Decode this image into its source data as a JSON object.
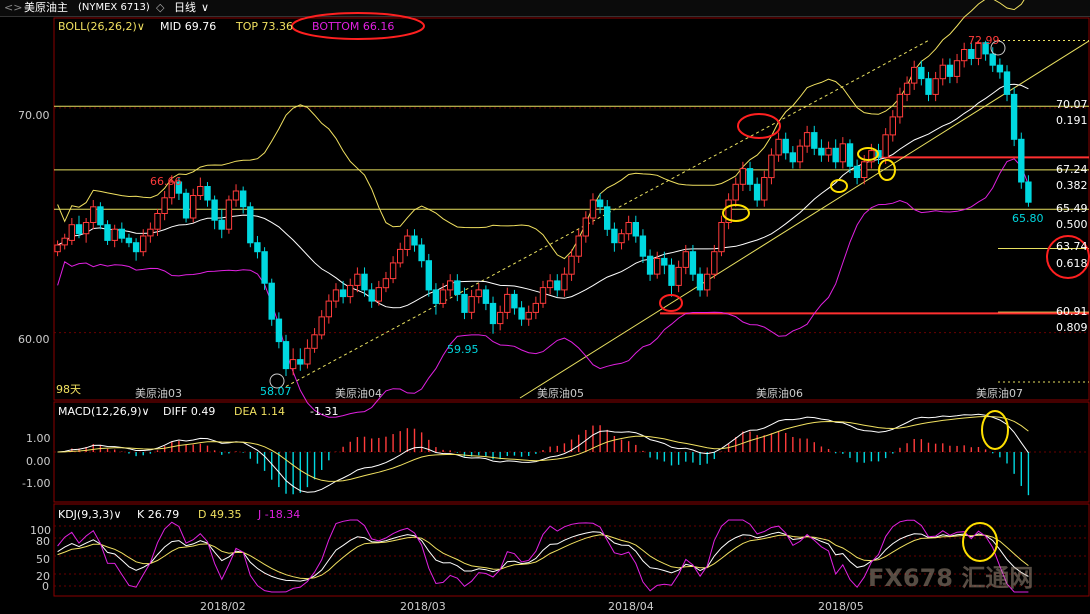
{
  "topbar": {
    "nav": "<>",
    "symbol": "美原油主",
    "exchange": "(NYMEX 6713)",
    "dropdown": "◇",
    "period": "日线",
    "period_arrow": "∨"
  },
  "colors": {
    "up": "#ff3b3b",
    "down": "#00d8e0",
    "boll": "#f0e060",
    "magenta": "#e020e0",
    "white": "#ffffff",
    "fib": "#e8e060",
    "support": "#ff3030",
    "annotation_red": "#ff2020",
    "annotation_yellow": "#ffe000"
  },
  "boll_panel": {
    "name": "BOLL(26,26,2)",
    "mid_label": "MID",
    "mid": "69.76",
    "top_label": "TOP",
    "top": "73.36",
    "bottom_label": "BOTTOM",
    "bottom": "66.16"
  },
  "macd_panel": {
    "name": "MACD(12,26,9)",
    "diff_label": "DIFF",
    "diff": "0.49",
    "dea_label": "DEA",
    "dea": "1.14",
    "macd": "-1.31",
    "ticks": [
      "1.00",
      "0.00",
      "-1.00"
    ]
  },
  "kdj_panel": {
    "name": "KDJ(9,3,3)",
    "k_label": "K",
    "k": "26.79",
    "d_label": "D",
    "d": "49.35",
    "j_label": "J",
    "j": "-18.34",
    "ticks": [
      "100",
      "80",
      "50",
      "20",
      "0"
    ]
  },
  "price_axis": {
    "ticks": [
      "70.00",
      "60.00"
    ]
  },
  "price_annotations": {
    "high_left": "66.66",
    "low_march": "58.07",
    "low_april": "59.95",
    "high_july": "72.99",
    "last": "65.80",
    "days": "98天"
  },
  "fib_levels": [
    {
      "price": "70.07",
      "ratio": "0.191"
    },
    {
      "price": "67.24",
      "ratio": "0.382"
    },
    {
      "price": "65.49",
      "ratio": "0.500"
    },
    {
      "price": "63.74",
      "ratio": "0.618"
    },
    {
      "price": "60.91",
      "ratio": "0.809"
    }
  ],
  "contract_labels": [
    "美原油03",
    "美原油04",
    "美原油05",
    "美原油06",
    "美原油07"
  ],
  "date_axis": [
    "2018/02",
    "2018/03",
    "2018/04",
    "2018/05"
  ],
  "watermark": "FX678 汇通网",
  "chart_data": {
    "type": "candlestick",
    "title": "美原油主 (NYMEX 6713) 日线",
    "ylim": [
      57,
      74
    ],
    "series": [
      {
        "name": "BOLL TOP",
        "last": 73.36
      },
      {
        "name": "BOLL MID",
        "last": 69.76
      },
      {
        "name": "BOLL BOTTOM",
        "last": 66.16
      }
    ],
    "annotated_points": [
      {
        "label": "66.66",
        "value": 66.66
      },
      {
        "label": "58.07",
        "value": 58.07
      },
      {
        "label": "59.95",
        "value": 59.95
      },
      {
        "label": "72.99",
        "value": 72.99
      },
      {
        "label": "65.80",
        "value": 65.8
      }
    ],
    "fibonacci": [
      {
        "ratio": 0.191,
        "value": 70.07
      },
      {
        "ratio": 0.382,
        "value": 67.24
      },
      {
        "ratio": 0.5,
        "value": 65.49
      },
      {
        "ratio": 0.618,
        "value": 63.74
      },
      {
        "ratio": 0.809,
        "value": 60.91
      }
    ],
    "macd": {
      "diff": 0.49,
      "dea": 1.14,
      "macd": -1.31,
      "ylim": [
        -1.8,
        1.8
      ]
    },
    "kdj": {
      "k": 26.79,
      "d": 49.35,
      "j": -18.34,
      "ylim": [
        -10,
        110
      ]
    },
    "candles": [
      [
        63.6,
        63.9,
        63.4,
        64.1
      ],
      [
        63.9,
        64.2,
        63.7,
        64.4
      ],
      [
        64.1,
        64.8,
        63.9,
        65.1
      ],
      [
        64.8,
        64.4,
        64.2,
        65.2
      ],
      [
        64.4,
        64.9,
        64.0,
        65.1
      ],
      [
        64.9,
        65.6,
        64.6,
        65.9
      ],
      [
        65.6,
        64.8,
        64.6,
        65.8
      ],
      [
        64.8,
        64.1,
        63.9,
        65.0
      ],
      [
        64.1,
        64.6,
        63.8,
        64.8
      ],
      [
        64.6,
        64.2,
        64.0,
        64.9
      ],
      [
        64.2,
        64.0,
        63.8,
        64.4
      ],
      [
        64.0,
        63.6,
        63.2,
        64.2
      ],
      [
        63.6,
        64.3,
        63.4,
        64.6
      ],
      [
        64.3,
        64.6,
        64.0,
        64.9
      ],
      [
        64.6,
        65.3,
        64.3,
        65.5
      ],
      [
        65.3,
        66.0,
        65.0,
        66.3
      ],
      [
        66.0,
        66.7,
        65.7,
        67.0
      ],
      [
        66.7,
        66.2,
        65.9,
        66.9
      ],
      [
        66.2,
        65.1,
        64.9,
        66.4
      ],
      [
        65.1,
        66.1,
        64.9,
        66.4
      ],
      [
        66.1,
        66.5,
        65.9,
        66.9
      ],
      [
        66.5,
        65.9,
        65.6,
        66.7
      ],
      [
        65.9,
        65.0,
        64.6,
        66.1
      ],
      [
        65.0,
        64.6,
        64.2,
        65.5
      ],
      [
        64.6,
        65.9,
        64.4,
        66.1
      ],
      [
        65.9,
        66.3,
        65.6,
        66.6
      ],
      [
        66.3,
        65.6,
        65.3,
        66.5
      ],
      [
        65.6,
        64.0,
        63.8,
        65.8
      ],
      [
        64.0,
        63.6,
        63.3,
        64.3
      ],
      [
        63.6,
        62.2,
        61.9,
        63.8
      ],
      [
        62.2,
        60.6,
        60.3,
        62.4
      ],
      [
        60.6,
        59.6,
        59.3,
        60.9
      ],
      [
        59.6,
        58.4,
        58.07,
        59.9
      ],
      [
        58.4,
        58.8,
        58.1,
        59.3
      ],
      [
        58.8,
        58.6,
        58.3,
        59.3
      ],
      [
        58.6,
        59.3,
        58.4,
        59.7
      ],
      [
        59.3,
        59.9,
        59.1,
        60.2
      ],
      [
        59.9,
        60.7,
        59.7,
        61.0
      ],
      [
        60.7,
        61.4,
        60.4,
        61.7
      ],
      [
        61.4,
        61.9,
        61.1,
        62.2
      ],
      [
        61.9,
        61.6,
        61.3,
        62.3
      ],
      [
        61.6,
        62.1,
        61.3,
        62.4
      ],
      [
        62.1,
        62.6,
        61.8,
        62.9
      ],
      [
        62.6,
        61.9,
        61.6,
        62.9
      ],
      [
        61.9,
        61.4,
        61.1,
        62.2
      ],
      [
        61.4,
        62.0,
        61.2,
        62.3
      ],
      [
        62.0,
        62.4,
        61.8,
        62.7
      ],
      [
        62.4,
        63.1,
        62.2,
        63.4
      ],
      [
        63.1,
        63.7,
        62.9,
        64.0
      ],
      [
        63.7,
        64.3,
        63.4,
        64.6
      ],
      [
        64.3,
        63.9,
        63.6,
        64.6
      ],
      [
        63.9,
        63.2,
        62.9,
        64.2
      ],
      [
        63.2,
        61.9,
        61.6,
        63.5
      ],
      [
        61.9,
        61.3,
        60.8,
        62.2
      ],
      [
        61.3,
        61.9,
        61.1,
        62.2
      ],
      [
        61.9,
        62.3,
        61.6,
        62.6
      ],
      [
        62.3,
        61.7,
        61.4,
        62.6
      ],
      [
        61.7,
        60.9,
        60.6,
        62.0
      ],
      [
        60.9,
        61.6,
        60.6,
        61.9
      ],
      [
        61.6,
        61.9,
        61.3,
        62.2
      ],
      [
        61.9,
        61.3,
        61.0,
        62.1
      ],
      [
        61.3,
        60.4,
        59.95,
        61.6
      ],
      [
        60.4,
        60.9,
        60.1,
        61.2
      ],
      [
        60.9,
        61.7,
        60.6,
        62.0
      ],
      [
        61.7,
        61.1,
        60.8,
        61.9
      ],
      [
        61.1,
        60.6,
        60.3,
        61.4
      ],
      [
        60.6,
        60.9,
        60.3,
        61.2
      ],
      [
        60.9,
        61.3,
        60.6,
        61.6
      ],
      [
        61.3,
        62.0,
        61.1,
        62.3
      ],
      [
        62.0,
        62.3,
        61.7,
        62.6
      ],
      [
        62.3,
        61.9,
        61.6,
        62.6
      ],
      [
        61.9,
        62.6,
        61.6,
        62.9
      ],
      [
        62.6,
        63.4,
        62.3,
        63.7
      ],
      [
        63.4,
        64.3,
        63.1,
        64.6
      ],
      [
        64.3,
        65.1,
        64.0,
        65.4
      ],
      [
        65.1,
        65.9,
        64.8,
        66.2
      ],
      [
        65.9,
        65.6,
        65.3,
        66.2
      ],
      [
        65.6,
        64.6,
        64.3,
        65.9
      ],
      [
        64.6,
        64.0,
        63.6,
        64.9
      ],
      [
        64.0,
        64.4,
        63.7,
        64.6
      ],
      [
        64.4,
        64.9,
        64.1,
        65.2
      ],
      [
        64.9,
        64.3,
        64.0,
        65.2
      ],
      [
        64.3,
        63.4,
        63.1,
        64.6
      ],
      [
        63.4,
        62.6,
        62.3,
        63.7
      ],
      [
        62.6,
        63.3,
        62.4,
        63.6
      ],
      [
        63.3,
        63.0,
        62.6,
        63.6
      ],
      [
        63.0,
        62.1,
        61.6,
        63.3
      ],
      [
        62.1,
        62.9,
        61.8,
        63.2
      ],
      [
        62.9,
        63.6,
        62.6,
        63.9
      ],
      [
        63.6,
        62.6,
        62.3,
        63.9
      ],
      [
        62.6,
        61.9,
        61.6,
        62.9
      ],
      [
        61.9,
        62.6,
        61.6,
        62.9
      ],
      [
        62.6,
        63.6,
        62.4,
        63.9
      ],
      [
        63.6,
        64.9,
        63.4,
        65.2
      ],
      [
        64.9,
        65.9,
        64.6,
        66.2
      ],
      [
        65.9,
        66.6,
        65.6,
        66.9
      ],
      [
        66.6,
        67.3,
        66.3,
        67.6
      ],
      [
        67.3,
        66.6,
        66.3,
        67.6
      ],
      [
        66.6,
        65.9,
        65.6,
        66.9
      ],
      [
        65.9,
        66.9,
        65.6,
        67.2
      ],
      [
        66.9,
        67.9,
        66.6,
        68.2
      ],
      [
        67.9,
        68.6,
        67.6,
        68.9
      ],
      [
        68.6,
        68.0,
        67.7,
        68.9
      ],
      [
        68.0,
        67.6,
        67.3,
        68.3
      ],
      [
        67.6,
        68.3,
        67.3,
        68.6
      ],
      [
        68.3,
        68.9,
        68.0,
        69.2
      ],
      [
        68.9,
        68.2,
        67.9,
        69.2
      ],
      [
        68.2,
        67.9,
        67.6,
        68.6
      ],
      [
        67.9,
        68.2,
        67.6,
        68.5
      ],
      [
        68.2,
        67.6,
        67.3,
        68.6
      ],
      [
        67.6,
        68.4,
        67.3,
        68.7
      ],
      [
        68.4,
        67.4,
        67.1,
        68.6
      ],
      [
        67.4,
        66.9,
        66.6,
        67.7
      ],
      [
        66.9,
        67.6,
        66.6,
        67.9
      ],
      [
        67.6,
        68.1,
        67.3,
        68.4
      ],
      [
        68.1,
        67.8,
        67.5,
        68.4
      ],
      [
        67.8,
        68.8,
        67.5,
        69.1
      ],
      [
        68.8,
        69.6,
        68.5,
        69.9
      ],
      [
        69.6,
        70.6,
        69.3,
        70.9
      ],
      [
        70.6,
        71.1,
        70.3,
        71.4
      ],
      [
        71.1,
        71.8,
        70.8,
        72.1
      ],
      [
        71.8,
        71.3,
        71.0,
        72.1
      ],
      [
        71.3,
        70.6,
        70.3,
        71.6
      ],
      [
        70.6,
        71.3,
        70.3,
        71.6
      ],
      [
        71.3,
        71.9,
        71.0,
        72.2
      ],
      [
        71.9,
        71.4,
        71.1,
        72.2
      ],
      [
        71.4,
        72.1,
        71.1,
        72.4
      ],
      [
        72.1,
        72.6,
        71.8,
        72.9
      ],
      [
        72.6,
        72.2,
        71.9,
        72.9
      ],
      [
        72.2,
        72.9,
        71.9,
        72.99
      ],
      [
        72.9,
        72.4,
        72.1,
        72.99
      ],
      [
        72.4,
        71.9,
        71.6,
        72.7
      ],
      [
        71.9,
        71.6,
        71.3,
        72.2
      ],
      [
        71.6,
        70.6,
        70.3,
        71.9
      ],
      [
        70.6,
        68.6,
        68.3,
        70.9
      ],
      [
        68.6,
        66.7,
        66.4,
        68.9
      ],
      [
        66.7,
        65.8,
        65.6,
        67.0
      ]
    ]
  }
}
